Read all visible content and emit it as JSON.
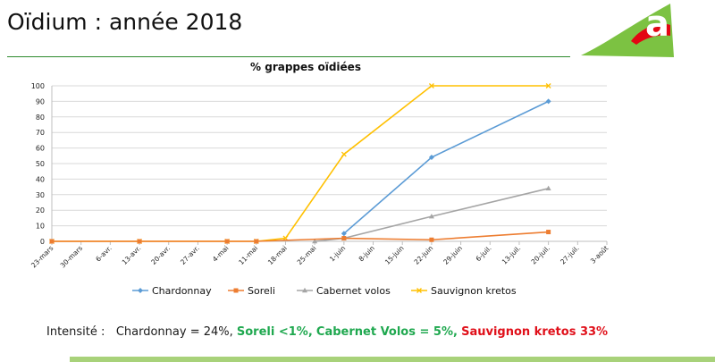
{
  "slide": {
    "title": "Oïdium : année 2018"
  },
  "colors": {
    "Chardonnay": "#5b9bd5",
    "Soreli": "#ed7d31",
    "Cabernet volos": "#a5a5a5",
    "Sauvignon kretos": "#ffc000",
    "rule": "#2e8b2e",
    "logo_green": "#7cc242",
    "logo_red": "#e30613"
  },
  "chart_data": {
    "type": "line",
    "title": "% grappes oïdiées",
    "xlabel": "",
    "ylabel": "",
    "ylim": [
      0,
      100
    ],
    "yticks": [
      0,
      10,
      20,
      30,
      40,
      50,
      60,
      70,
      80,
      90,
      100
    ],
    "categories": [
      "23-mars",
      "30-mars",
      "6-avr.",
      "13-avr.",
      "20-avr.",
      "27-avr.",
      "4-mai",
      "11-mai",
      "18-mai",
      "25-mai",
      "1-juin",
      "8-juin",
      "15-juin",
      "22-juin",
      "29-juin",
      "6-juil.",
      "13-juil.",
      "20-juil.",
      "27-juil.",
      "3-août"
    ],
    "grid": true,
    "legend": "bottom",
    "series": [
      {
        "name": "Chardonnay",
        "x": [
          "1-juin",
          "22-juin",
          "20-juil."
        ],
        "values": [
          5,
          54,
          90
        ]
      },
      {
        "name": "Soreli",
        "x": [
          "23-mars",
          "13-avr.",
          "4-mai",
          "11-mai",
          "1-juin",
          "22-juin",
          "20-juil."
        ],
        "values": [
          0,
          0,
          0,
          0,
          2,
          1,
          6
        ]
      },
      {
        "name": "Cabernet volos",
        "x": [
          "25-mai",
          "1-juin",
          "22-juin",
          "20-juil."
        ],
        "values": [
          0,
          2,
          16,
          34
        ]
      },
      {
        "name": "Sauvignon kretos",
        "x": [
          "23-mars",
          "13-avr.",
          "4-mai",
          "11-mai",
          "18-mai",
          "1-juin",
          "22-juin",
          "20-juil."
        ],
        "values": [
          0,
          0,
          0,
          0,
          2,
          56,
          100,
          100
        ]
      }
    ]
  },
  "intensity": {
    "label": "Intensité :",
    "chardonnay": "Chardonnay = 24%,",
    "soreli": "Soreli <1%,",
    "cabernet": "Cabernet Volos = 5%,",
    "sauvignon": "Sauvignon kretos 33%"
  }
}
